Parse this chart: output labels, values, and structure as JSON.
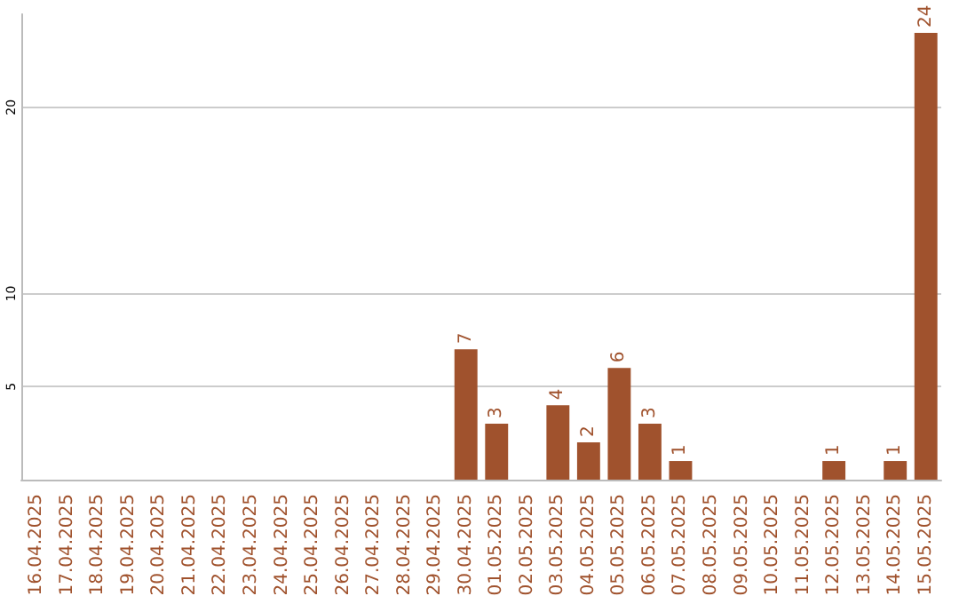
{
  "chart_data": {
    "type": "bar",
    "categories": [
      "16.04.2025",
      "17.04.2025",
      "18.04.2025",
      "19.04.2025",
      "20.04.2025",
      "21.04.2025",
      "22.04.2025",
      "23.04.2025",
      "24.04.2025",
      "25.04.2025",
      "26.04.2025",
      "27.04.2025",
      "28.04.2025",
      "29.04.2025",
      "30.04.2025",
      "01.05.2025",
      "02.05.2025",
      "03.05.2025",
      "04.05.2025",
      "05.05.2025",
      "06.05.2025",
      "07.05.2025",
      "08.05.2025",
      "09.05.2025",
      "10.05.2025",
      "11.05.2025",
      "12.05.2025",
      "13.05.2025",
      "14.05.2025",
      "15.05.2025"
    ],
    "values": [
      0,
      0,
      0,
      0,
      0,
      0,
      0,
      0,
      0,
      0,
      0,
      0,
      0,
      0,
      7,
      3,
      0,
      4,
      2,
      6,
      3,
      1,
      0,
      0,
      0,
      0,
      1,
      0,
      1,
      24
    ],
    "value_labels": [
      null,
      null,
      null,
      null,
      null,
      null,
      null,
      null,
      null,
      null,
      null,
      null,
      null,
      null,
      "7",
      "3",
      null,
      "4",
      "2",
      "6",
      "3",
      "1",
      null,
      null,
      null,
      null,
      "1",
      null,
      "1",
      "24"
    ],
    "color": "#a0522d",
    "ylim": [
      0,
      25
    ],
    "yticks": [
      5,
      10,
      20
    ],
    "grid": "y"
  }
}
